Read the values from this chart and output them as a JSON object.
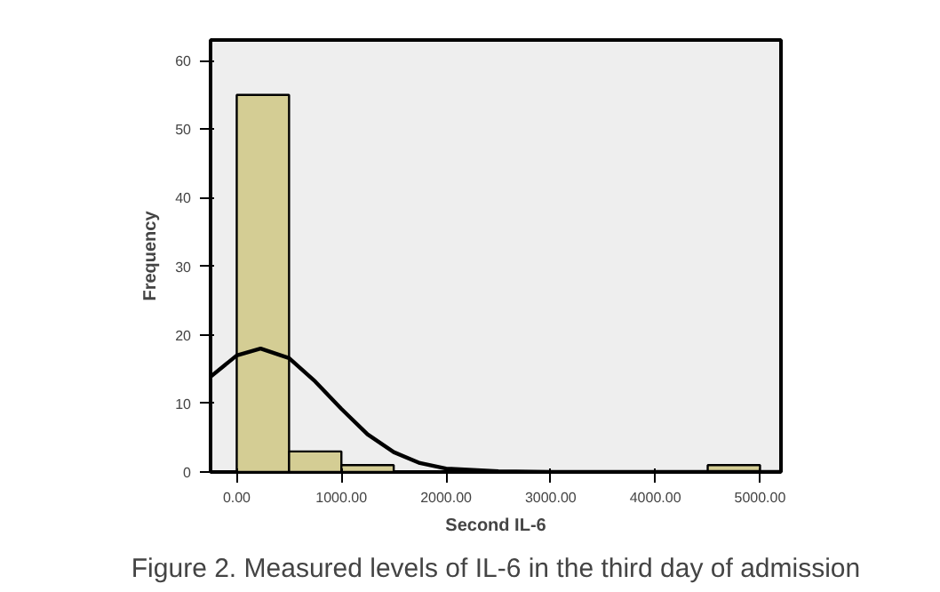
{
  "chart_data": {
    "type": "histogram",
    "xlabel": "Second IL-6",
    "ylabel": "Frequency",
    "bins": [
      0,
      500,
      1000,
      1500,
      2000,
      2500,
      3000,
      3500,
      4000,
      4500,
      5000
    ],
    "values": [
      55,
      3,
      1,
      0,
      0,
      0,
      0,
      0,
      0,
      1
    ],
    "color": "#d4cd94",
    "series": [
      {
        "type": "line",
        "color": "#000000",
        "x": [
          -250,
          0,
          228,
          500,
          750,
          1000,
          1250,
          1500,
          1750,
          2000,
          2500,
          3000,
          4000,
          5200
        ],
        "values": [
          13.9,
          17.0,
          18.0,
          16.6,
          13.2,
          9.2,
          5.5,
          2.9,
          1.3,
          0.5,
          0.1,
          0,
          0,
          0
        ]
      }
    ],
    "xlim": [
      -250,
      5200
    ],
    "ylim": [
      0,
      63
    ],
    "xticks": [
      {
        "value": 0,
        "label": "0.00"
      },
      {
        "value": 1000,
        "label": "1000.00"
      },
      {
        "value": 2000,
        "label": "2000.00"
      },
      {
        "value": 3000,
        "label": "3000.00"
      },
      {
        "value": 4000,
        "label": "4000.00"
      },
      {
        "value": 5000,
        "label": "5000.00"
      }
    ],
    "yticks": [
      0,
      10,
      20,
      30,
      40,
      50,
      60
    ],
    "grid": false,
    "annotations": [
      "Figure 2. Measured levels of IL-6 in the third day of admission"
    ]
  }
}
